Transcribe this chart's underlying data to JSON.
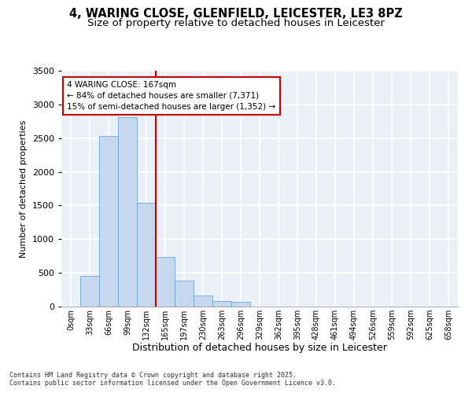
{
  "title_line1": "4, WARING CLOSE, GLENFIELD, LEICESTER, LE3 8PZ",
  "title_line2": "Size of property relative to detached houses in Leicester",
  "xlabel": "Distribution of detached houses by size in Leicester",
  "ylabel": "Number of detached properties",
  "bar_color": "#c5d8ed",
  "bar_edge_color": "#5b9bd5",
  "bg_color": "#eaf0f8",
  "grid_color": "#ffffff",
  "vline_color": "#cc0000",
  "annotation_box_color": "#cc0000",
  "categories": [
    "0sqm",
    "33sqm",
    "66sqm",
    "99sqm",
    "132sqm",
    "165sqm",
    "197sqm",
    "230sqm",
    "263sqm",
    "296sqm",
    "329sqm",
    "362sqm",
    "395sqm",
    "428sqm",
    "461sqm",
    "494sqm",
    "526sqm",
    "559sqm",
    "592sqm",
    "625sqm",
    "658sqm"
  ],
  "values": [
    5,
    460,
    2530,
    2810,
    1540,
    730,
    390,
    160,
    80,
    75,
    5,
    0,
    0,
    0,
    0,
    0,
    0,
    0,
    0,
    0,
    0
  ],
  "vline_x": 5,
  "annotation_text": "4 WARING CLOSE: 167sqm\n← 84% of detached houses are smaller (7,371)\n15% of semi-detached houses are larger (1,352) →",
  "ylim": [
    0,
    3500
  ],
  "yticks": [
    0,
    500,
    1000,
    1500,
    2000,
    2500,
    3000,
    3500
  ],
  "footnote": "Contains HM Land Registry data © Crown copyright and database right 2025.\nContains public sector information licensed under the Open Government Licence v3.0.",
  "title_fontsize": 10.5,
  "subtitle_fontsize": 9.5,
  "bar_width": 1.0
}
